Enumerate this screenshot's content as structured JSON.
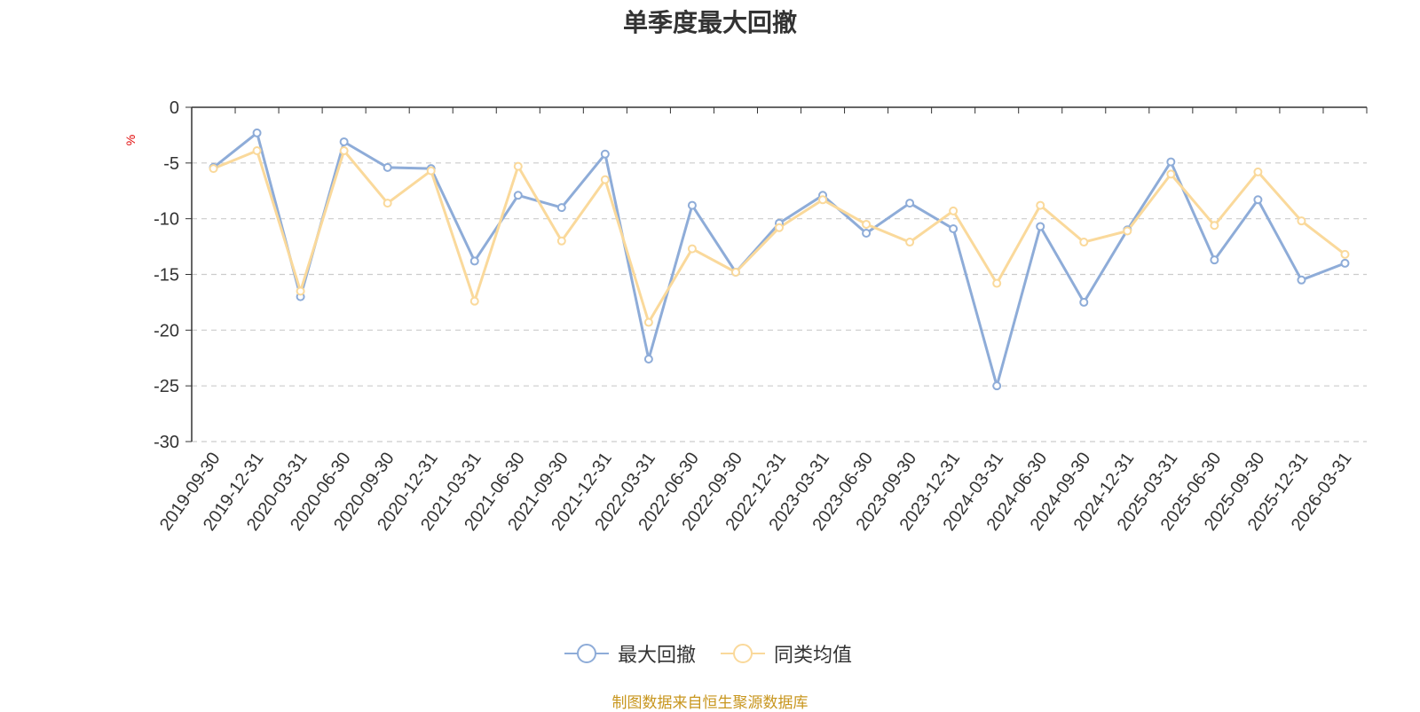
{
  "chart_data": {
    "type": "line",
    "title": "单季度最大回撤",
    "ylabel": "%",
    "ylim": [
      -30,
      0
    ],
    "yticks": [
      0,
      -5,
      -10,
      -15,
      -20,
      -25,
      -30
    ],
    "grid": true,
    "legend_position": "bottom",
    "categories": [
      "2019-09-30",
      "2019-12-31",
      "2020-03-31",
      "2020-06-30",
      "2020-09-30",
      "2020-12-31",
      "2021-03-31",
      "2021-06-30",
      "2021-09-30",
      "2021-12-31",
      "2022-03-31",
      "2022-06-30",
      "2022-09-30",
      "2022-12-31",
      "2023-03-31",
      "2023-06-30",
      "2023-09-30",
      "2023-12-31",
      "2024-03-31",
      "2024-06-30",
      "2024-09-30",
      "2024-12-31",
      "2025-03-31",
      "2025-06-30",
      "2025-09-30",
      "2025-12-31",
      "2026-03-31"
    ],
    "series": [
      {
        "name": "最大回撤",
        "color": "#8eacd8",
        "values": [
          -5.4,
          -2.3,
          -17.0,
          -3.1,
          -5.4,
          -5.5,
          -13.8,
          -7.9,
          -9.0,
          -4.2,
          -22.6,
          -8.8,
          -14.8,
          -10.4,
          -7.9,
          -11.3,
          -8.6,
          -10.9,
          -25.0,
          -10.7,
          -17.5,
          -11.0,
          -4.9,
          -13.7,
          -8.3,
          -15.5,
          -14.0
        ]
      },
      {
        "name": "同类均值",
        "color": "#fad99b",
        "values": [
          -5.5,
          -3.9,
          -16.5,
          -3.9,
          -8.6,
          -5.7,
          -17.4,
          -5.3,
          -12.0,
          -6.5,
          -19.3,
          -12.7,
          -14.8,
          -10.8,
          -8.3,
          -10.5,
          -12.1,
          -9.3,
          -15.8,
          -8.8,
          -12.1,
          -11.1,
          -6.0,
          -10.6,
          -5.8,
          -10.2,
          -13.2
        ]
      }
    ]
  },
  "source_text": "制图数据来自恒生聚源数据库"
}
